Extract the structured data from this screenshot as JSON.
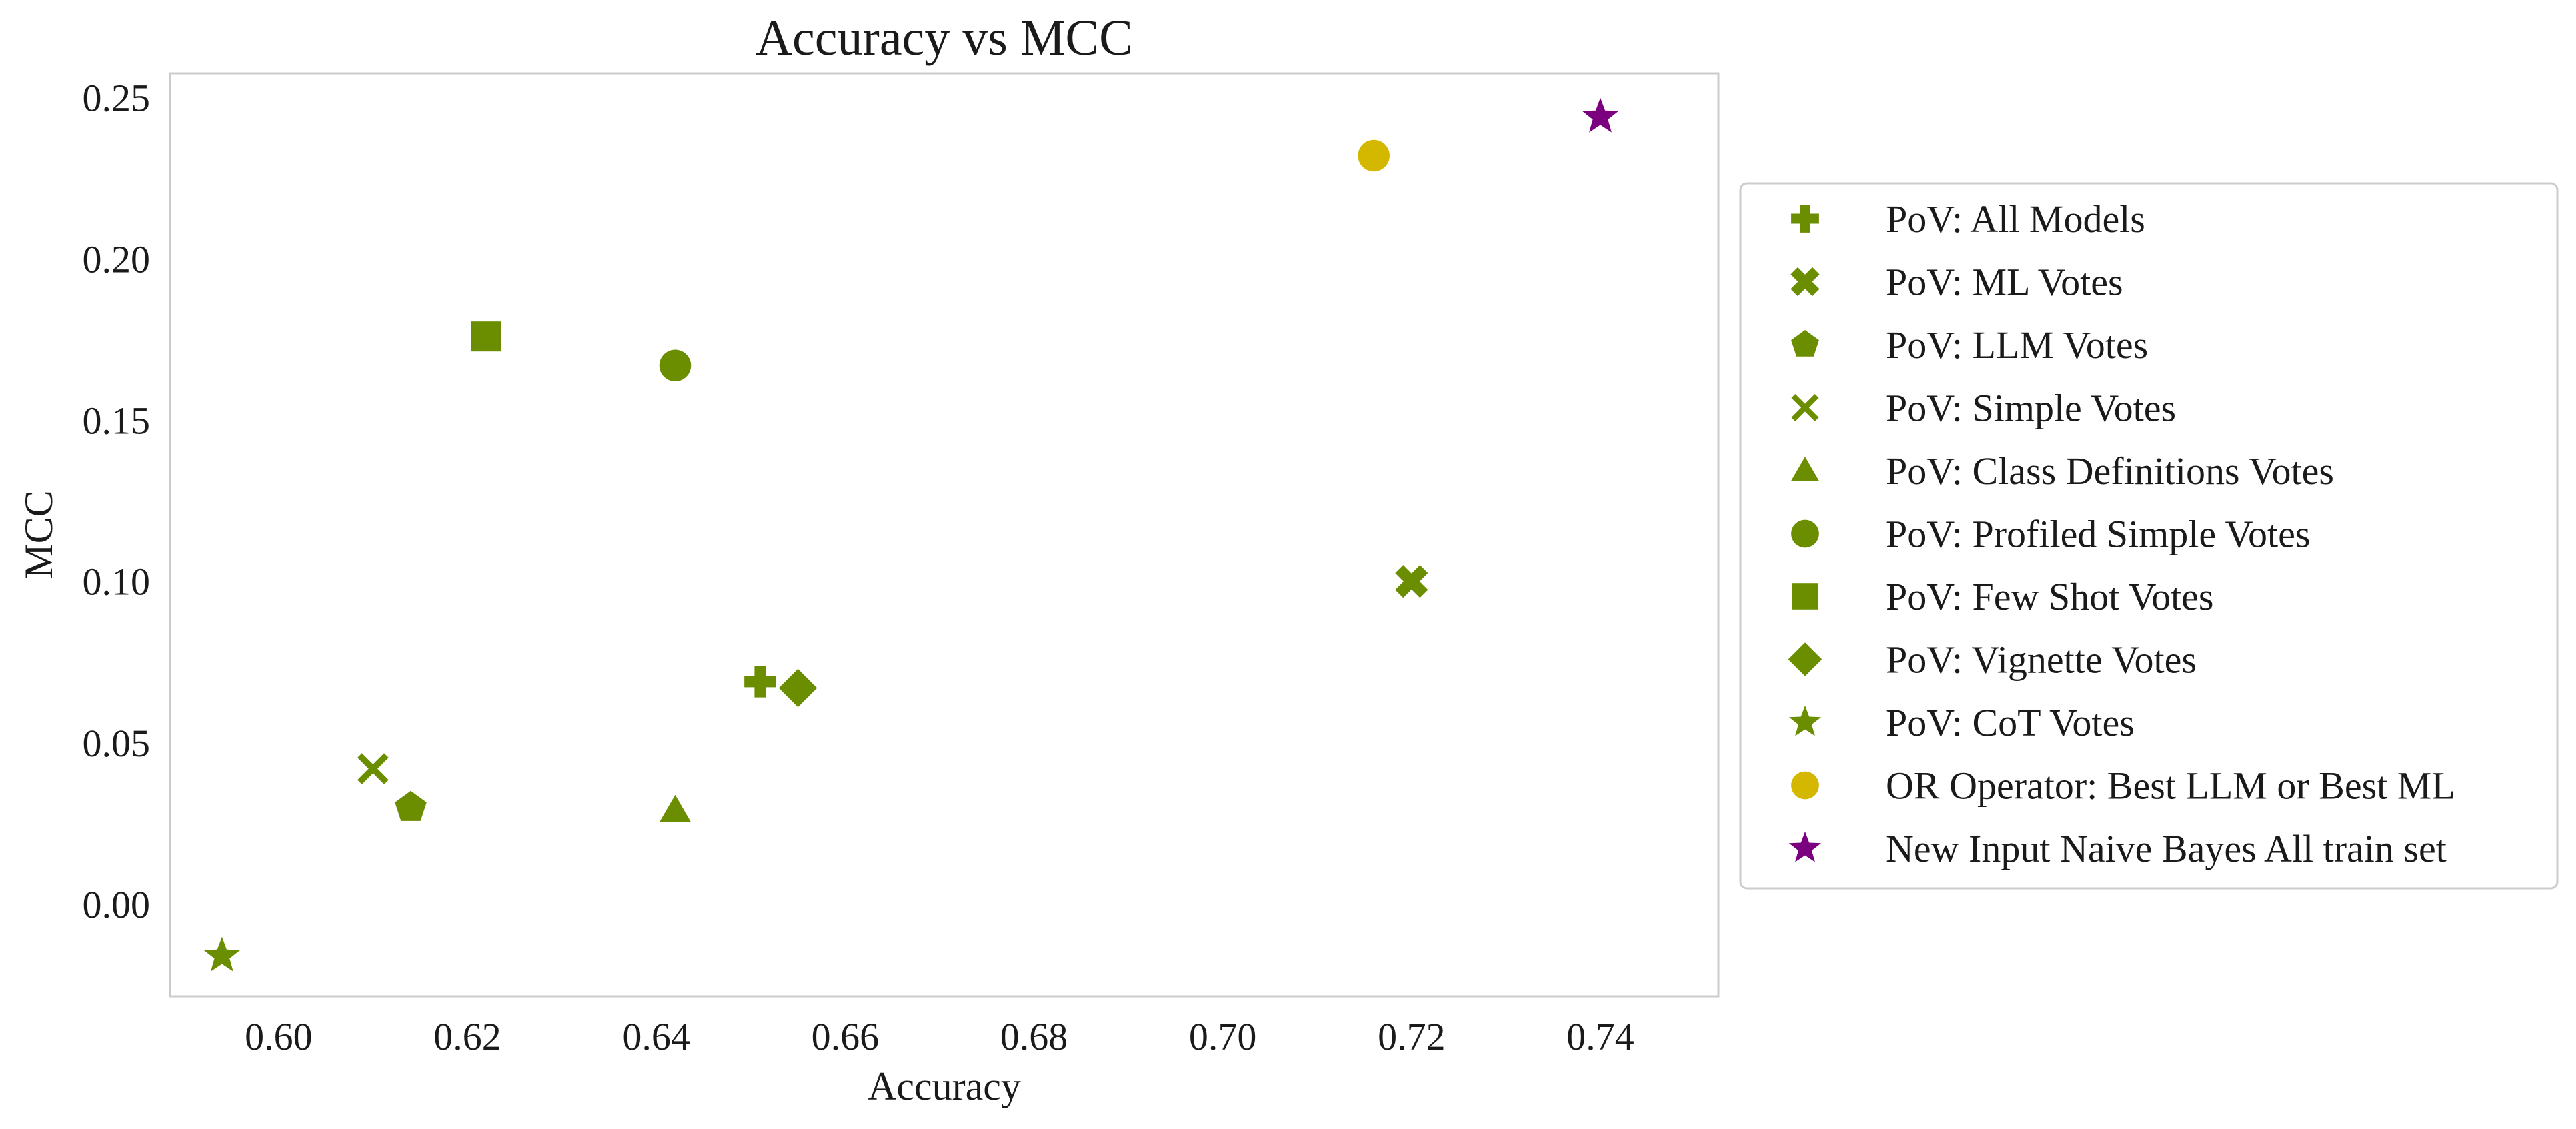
{
  "chart_data": {
    "type": "scatter",
    "title": "Accuracy vs MCC",
    "xlabel": "Accuracy",
    "ylabel": "MCC",
    "xlim": [
      0.5885,
      0.7525
    ],
    "ylim": [
      -0.0285,
      0.2575
    ],
    "x_ticks": [
      {
        "value": 0.6,
        "label": "0.60"
      },
      {
        "value": 0.62,
        "label": "0.62"
      },
      {
        "value": 0.64,
        "label": "0.64"
      },
      {
        "value": 0.66,
        "label": "0.66"
      },
      {
        "value": 0.68,
        "label": "0.68"
      },
      {
        "value": 0.7,
        "label": "0.70"
      },
      {
        "value": 0.72,
        "label": "0.72"
      },
      {
        "value": 0.74,
        "label": "0.74"
      }
    ],
    "y_ticks": [
      {
        "value": 0.0,
        "label": "0.00"
      },
      {
        "value": 0.05,
        "label": "0.05"
      },
      {
        "value": 0.1,
        "label": "0.10"
      },
      {
        "value": 0.15,
        "label": "0.15"
      },
      {
        "value": 0.2,
        "label": "0.20"
      },
      {
        "value": 0.25,
        "label": "0.25"
      }
    ],
    "grid": false,
    "legend_position": "right-outside",
    "series": [
      {
        "name": "PoV: All Models",
        "marker": "plus",
        "color": "#6b8e00",
        "x": 0.651,
        "y": 0.069
      },
      {
        "name": "PoV: ML Votes",
        "marker": "x-filled",
        "color": "#6b8e00",
        "x": 0.72,
        "y": 0.1
      },
      {
        "name": "PoV: LLM Votes",
        "marker": "pentagon",
        "color": "#6b8e00",
        "x": 0.614,
        "y": 0.03
      },
      {
        "name": "PoV: Simple Votes",
        "marker": "x",
        "color": "#6b8e00",
        "x": 0.61,
        "y": 0.042
      },
      {
        "name": "PoV: Class Definitions Votes",
        "marker": "triangle",
        "color": "#6b8e00",
        "x": 0.642,
        "y": 0.029
      },
      {
        "name": "PoV: Profiled Simple Votes",
        "marker": "circle",
        "color": "#6b8e00",
        "x": 0.642,
        "y": 0.167
      },
      {
        "name": "PoV: Few Shot Votes",
        "marker": "square",
        "color": "#6b8e00",
        "x": 0.622,
        "y": 0.176
      },
      {
        "name": "PoV: Vignette Votes",
        "marker": "diamond",
        "color": "#6b8e00",
        "x": 0.655,
        "y": 0.067
      },
      {
        "name": "PoV: CoT Votes",
        "marker": "star",
        "color": "#6b8e00",
        "x": 0.594,
        "y": -0.016
      },
      {
        "name": "OR Operator: Best LLM or Best ML",
        "marker": "circle",
        "color": "#d4b800",
        "x": 0.716,
        "y": 0.232
      },
      {
        "name": "New Input Naive Bayes All train set",
        "marker": "star",
        "color": "#7a0080",
        "x": 0.74,
        "y": 0.244
      }
    ]
  }
}
